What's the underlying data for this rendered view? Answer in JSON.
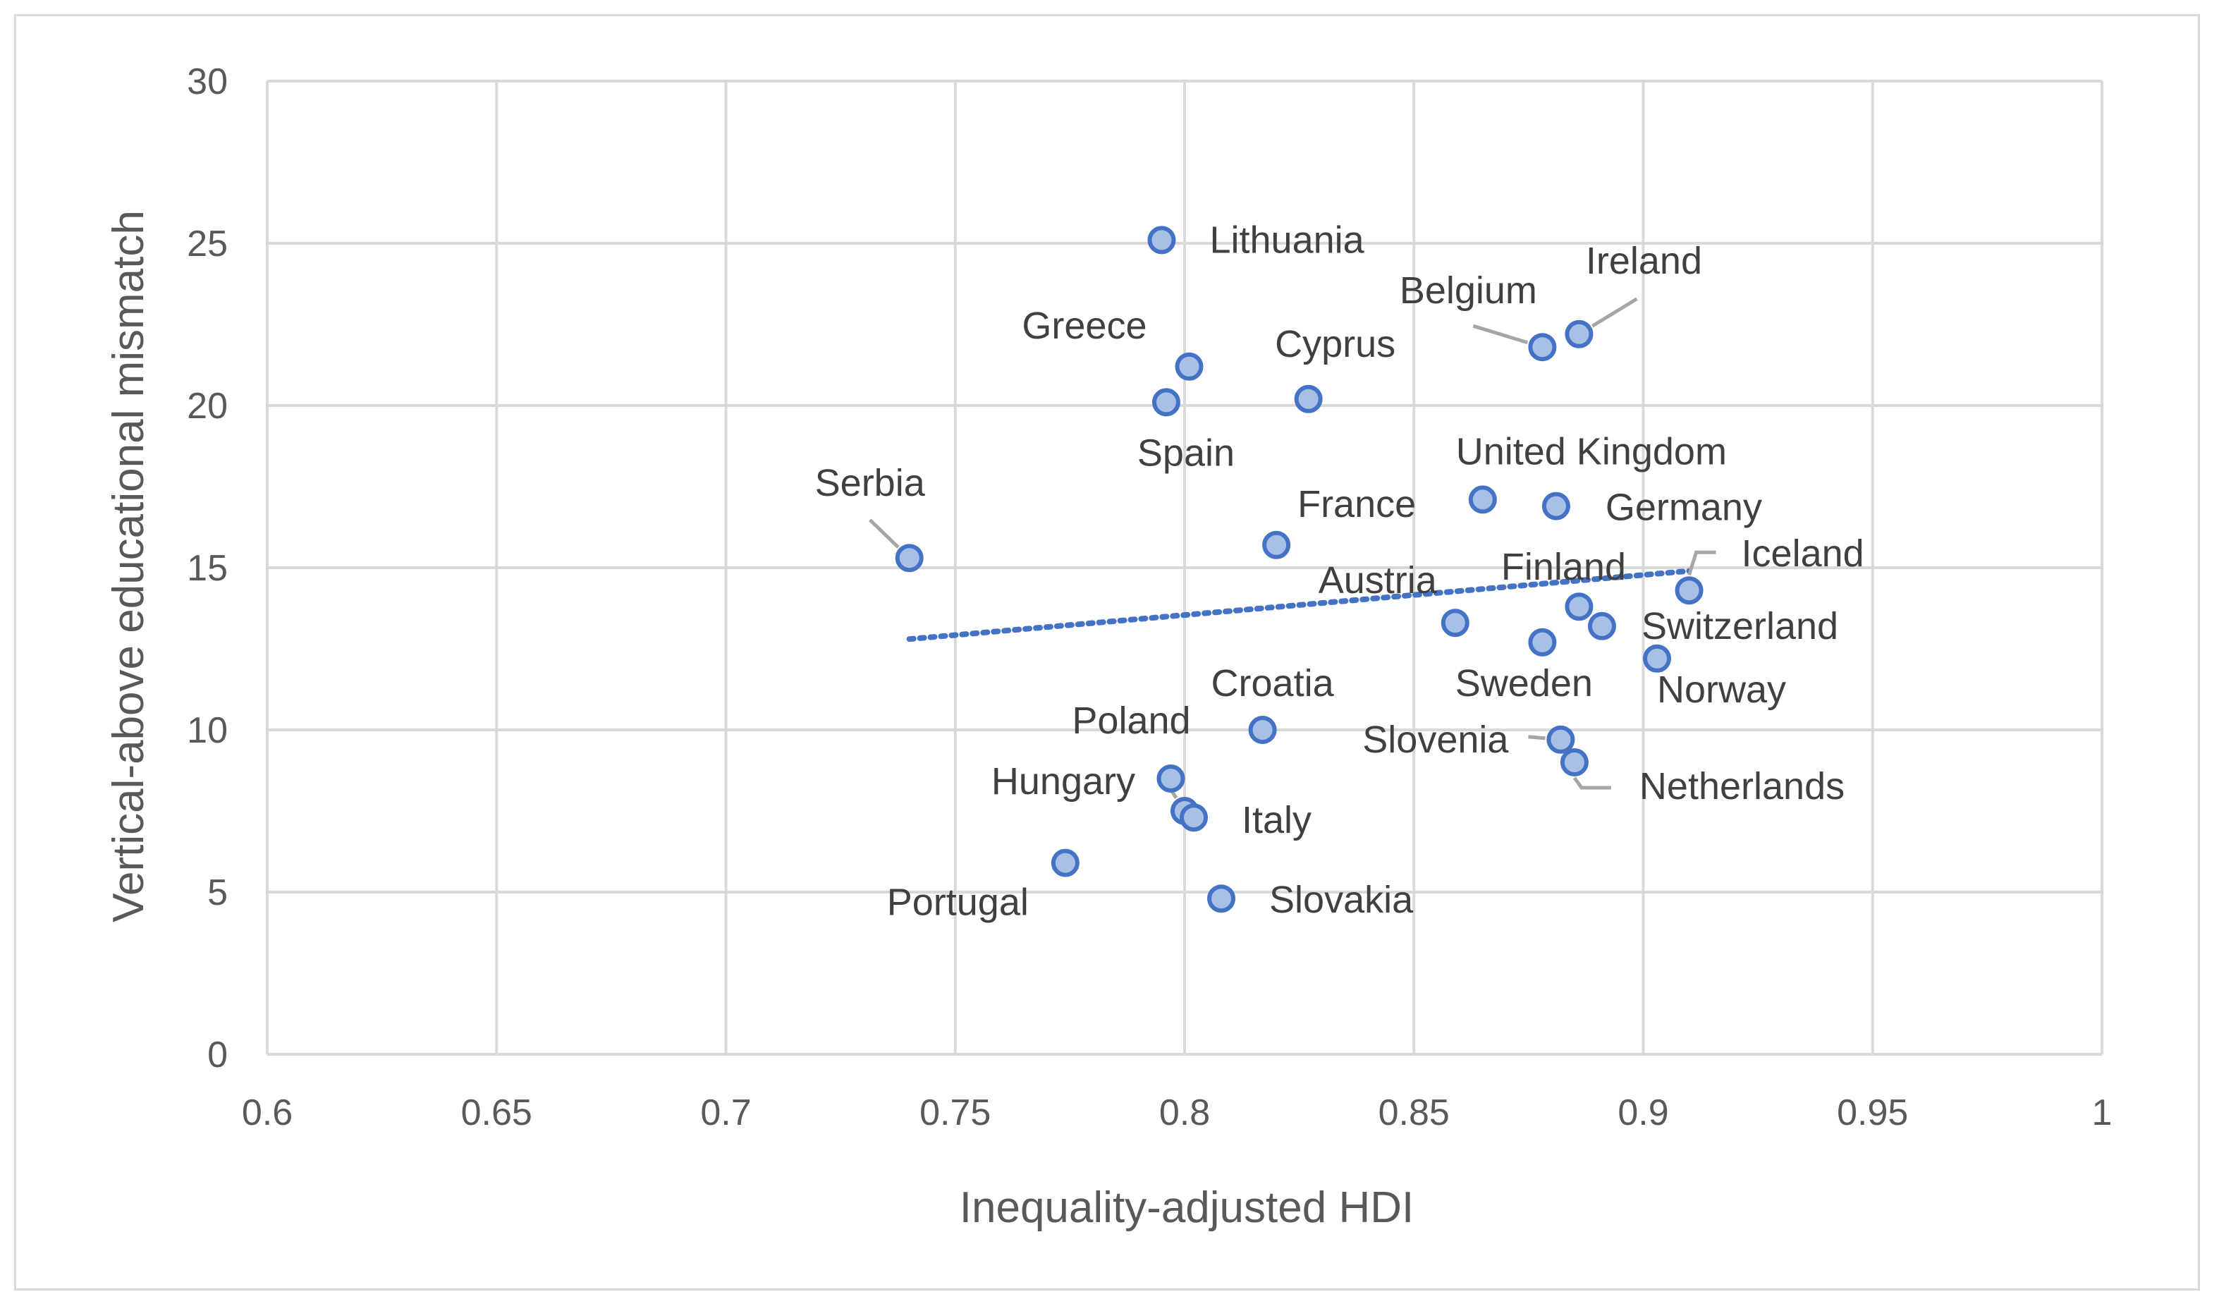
{
  "chart_data": {
    "type": "scatter",
    "title": "",
    "xlabel": "Inequality-adjusted HDI",
    "ylabel": "Vertical-above educational mismatch",
    "xlim": [
      0.6,
      1
    ],
    "ylim": [
      0,
      30
    ],
    "x_ticks": [
      "0.6",
      "0.65",
      "0.7",
      "0.75",
      "0.8",
      "0.85",
      "0.9",
      "0.95",
      "1"
    ],
    "y_ticks": [
      "0",
      "5",
      "10",
      "15",
      "20",
      "25",
      "30"
    ],
    "grid": true,
    "marker_fill": "#a9c0e6",
    "marker_stroke": "#4472c4",
    "trendline": {
      "type": "linear",
      "x": [
        0.74,
        0.91
      ],
      "y": [
        12.8,
        14.9
      ],
      "color": "#4472c4"
    },
    "points": [
      {
        "label": "Lithuania",
        "x": 0.795,
        "y": 25.1
      },
      {
        "label": "Greece",
        "x": 0.801,
        "y": 21.2
      },
      {
        "label": "Spain",
        "x": 0.796,
        "y": 20.1
      },
      {
        "label": "Cyprus",
        "x": 0.827,
        "y": 20.2
      },
      {
        "label": "Belgium",
        "x": 0.878,
        "y": 21.8
      },
      {
        "label": "Ireland",
        "x": 0.886,
        "y": 22.2
      },
      {
        "label": "Serbia",
        "x": 0.74,
        "y": 15.3
      },
      {
        "label": "France",
        "x": 0.82,
        "y": 15.7
      },
      {
        "label": "United Kingdom",
        "x": 0.865,
        "y": 17.1
      },
      {
        "label": "Germany",
        "x": 0.881,
        "y": 16.9
      },
      {
        "label": "Finland",
        "x": 0.886,
        "y": 13.8
      },
      {
        "label": "Iceland",
        "x": 0.91,
        "y": 14.3
      },
      {
        "label": "Austria",
        "x": 0.859,
        "y": 13.3
      },
      {
        "label": "Switzerland",
        "x": 0.891,
        "y": 13.2
      },
      {
        "label": "Sweden",
        "x": 0.878,
        "y": 12.7
      },
      {
        "label": "Norway",
        "x": 0.903,
        "y": 12.2
      },
      {
        "label": "Croatia",
        "x": 0.817,
        "y": 10.0
      },
      {
        "label": "Poland",
        "x": 0.797,
        "y": 8.5
      },
      {
        "label": "Slovenia",
        "x": 0.882,
        "y": 9.7
      },
      {
        "label": "Netherlands",
        "x": 0.885,
        "y": 9.0
      },
      {
        "label": "Hungary",
        "x": 0.8,
        "y": 7.5
      },
      {
        "label": "Italy",
        "x": 0.802,
        "y": 7.3
      },
      {
        "label": "Portugal",
        "x": 0.774,
        "y": 5.9
      },
      {
        "label": "Slovakia",
        "x": 0.808,
        "y": 4.8
      }
    ]
  }
}
